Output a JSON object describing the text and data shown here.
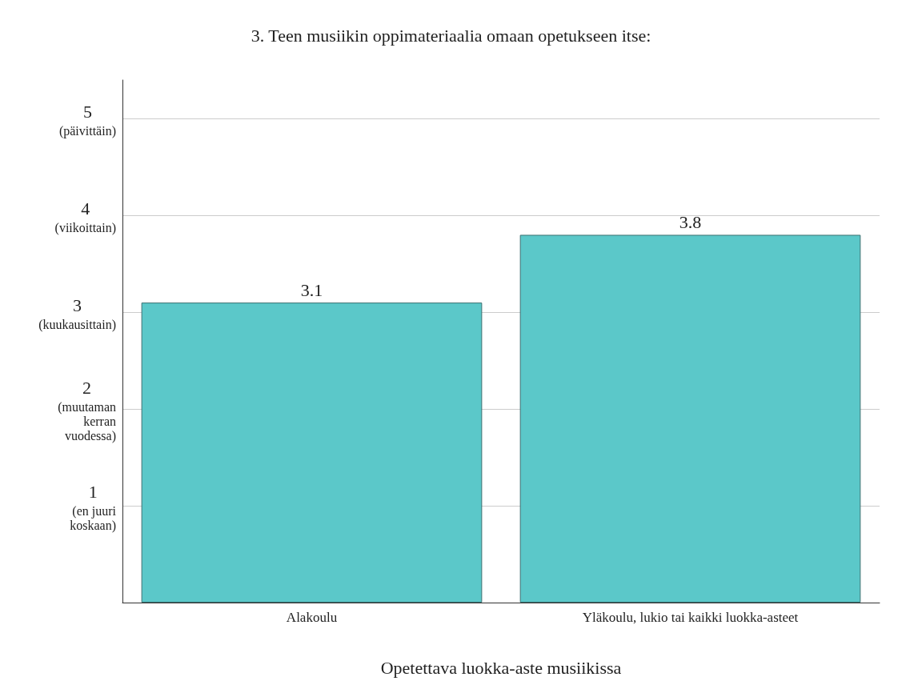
{
  "chart_data": {
    "type": "bar",
    "title": "3. Teen musiikin oppimateriaalia omaan opetukseen itse:",
    "xlabel": "Opetettava luokka-aste musiikissa",
    "categories": [
      "Alakoulu",
      "Yläkoulu, lukio tai kaikki luokka-asteet"
    ],
    "values": [
      3.1,
      3.8
    ],
    "color": "#5bc8c9",
    "data_labels": true,
    "grid": "y",
    "ylim": [
      0,
      5.4
    ],
    "yticks": [
      {
        "value": 1,
        "label": "1\n(en juuri\nkoskaan)"
      },
      {
        "value": 2,
        "label": "2\n(muutaman\nkerran\nvuodessa)"
      },
      {
        "value": 3,
        "label": "3\n(kuukausittain)"
      },
      {
        "value": 4,
        "label": "4\n(viikoittain)"
      },
      {
        "value": 5,
        "label": "5\n(päivittäin)"
      }
    ]
  }
}
